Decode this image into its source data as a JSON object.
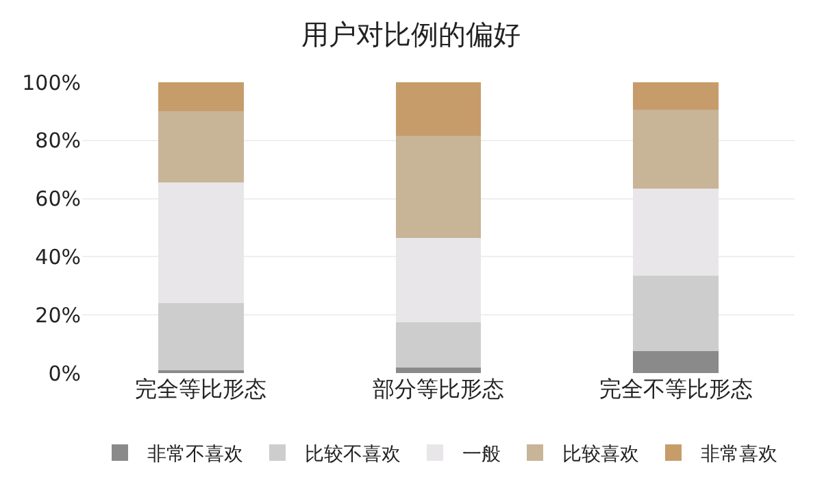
{
  "chart_data": {
    "type": "bar",
    "title": "用户对比例的偏好",
    "stacked": true,
    "categories": [
      "完全等比形态",
      "部分等比形态",
      "完全不等比形态"
    ],
    "series": [
      {
        "name": "非常不喜欢",
        "color": "#8a8a8a",
        "values": [
          1,
          2,
          7.5
        ]
      },
      {
        "name": "比较不喜欢",
        "color": "#cdcdcd",
        "values": [
          23,
          15.5,
          26
        ]
      },
      {
        "name": "一般",
        "color": "#e8e6e9",
        "values": [
          41.5,
          29,
          30
        ]
      },
      {
        "name": "比较喜欢",
        "color": "#c8b497",
        "values": [
          24.5,
          35,
          27
        ]
      },
      {
        "name": "非常喜欢",
        "color": "#c79c6b",
        "values": [
          10,
          18.5,
          9.5
        ]
      }
    ],
    "ylim": [
      0,
      100
    ],
    "yticks": [
      {
        "value": 0,
        "label": "0%"
      },
      {
        "value": 20,
        "label": "20%"
      },
      {
        "value": 40,
        "label": "40%"
      },
      {
        "value": 60,
        "label": "60%"
      },
      {
        "value": 80,
        "label": "80%"
      },
      {
        "value": 100,
        "label": "100%"
      }
    ],
    "grid": "y",
    "legend": "bottom"
  }
}
